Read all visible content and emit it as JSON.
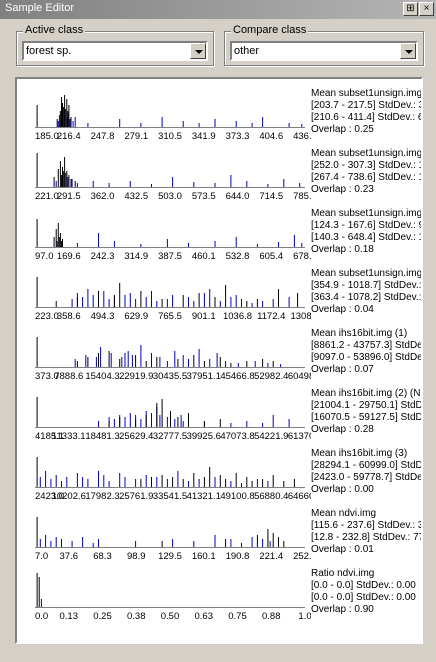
{
  "window": {
    "title": "Sample Editor",
    "pin_glyph": "⊞",
    "close_glyph": "×"
  },
  "active_class": {
    "label": "Active class",
    "value": "forest sp."
  },
  "compare_class": {
    "label": "Compare class",
    "value": "other"
  },
  "colors": {
    "active": "#000000",
    "compare": "#0000c0"
  },
  "rows": [
    {
      "ticks": [
        "185.0",
        "216.4",
        "247.8",
        "279.1",
        "310.5",
        "341.9",
        "373.3",
        "404.6",
        "436.0"
      ],
      "info": [
        "Mean subset1unsign.img",
        "[203.7 - 217.5] StdDev.: 3",
        "[210.6 - 411.4] StdDev.: 6",
        "Overlap : 0.25"
      ],
      "active_bins": [
        [
          2,
          22
        ],
        [
          21,
          8
        ],
        [
          24,
          16
        ],
        [
          25,
          30
        ],
        [
          26,
          24
        ],
        [
          27,
          20
        ],
        [
          28,
          32
        ],
        [
          29,
          18
        ],
        [
          30,
          28
        ],
        [
          31,
          14
        ],
        [
          32,
          22
        ],
        [
          34,
          10
        ]
      ],
      "compare_bins": [
        [
          22,
          6
        ],
        [
          23,
          12
        ],
        [
          26,
          14
        ],
        [
          28,
          18
        ],
        [
          30,
          10
        ],
        [
          31,
          16
        ],
        [
          33,
          8
        ],
        [
          36,
          6
        ],
        [
          38,
          10
        ],
        [
          50,
          4
        ],
        [
          80,
          8
        ],
        [
          100,
          4
        ],
        [
          120,
          10
        ],
        [
          140,
          6
        ],
        [
          155,
          4
        ],
        [
          170,
          8
        ],
        [
          190,
          6
        ],
        [
          205,
          4
        ],
        [
          215,
          10
        ],
        [
          240,
          4
        ],
        [
          252,
          3
        ]
      ]
    },
    {
      "ticks": [
        "221.0",
        "291.5",
        "362.0",
        "432.5",
        "503.0",
        "573.5",
        "644.0",
        "714.5",
        "785.0"
      ],
      "info": [
        "Mean subset1unsign.img",
        "[252.0 - 307.3] StdDev.: 1",
        "[267.4 - 738.6] StdDev.: 1",
        "Overlap : 0.23"
      ],
      "active_bins": [
        [
          2,
          34
        ],
        [
          18,
          10
        ],
        [
          22,
          18
        ],
        [
          24,
          26
        ],
        [
          26,
          20
        ],
        [
          28,
          30
        ],
        [
          30,
          16
        ],
        [
          32,
          12
        ],
        [
          34,
          8
        ],
        [
          38,
          6
        ]
      ],
      "compare_bins": [
        [
          20,
          6
        ],
        [
          25,
          12
        ],
        [
          27,
          16
        ],
        [
          29,
          14
        ],
        [
          31,
          10
        ],
        [
          35,
          8
        ],
        [
          40,
          4
        ],
        [
          55,
          6
        ],
        [
          70,
          4
        ],
        [
          90,
          6
        ],
        [
          110,
          3
        ],
        [
          130,
          10
        ],
        [
          150,
          5
        ],
        [
          170,
          4
        ],
        [
          185,
          12
        ],
        [
          200,
          6
        ],
        [
          220,
          3
        ],
        [
          235,
          8
        ],
        [
          250,
          4
        ]
      ]
    },
    {
      "ticks": [
        "97.0",
        "169.6",
        "242.3",
        "314.9",
        "387.5",
        "460.1",
        "532.8",
        "605.4",
        "678.0"
      ],
      "info": [
        "Mean subset1unsign.img",
        "[124.3 - 167.6] StdDev.: 9",
        "[140.3 - 648.4] StdDev.: 1",
        "Overlap : 0.18"
      ],
      "active_bins": [
        [
          2,
          28
        ],
        [
          18,
          10
        ],
        [
          20,
          18
        ],
        [
          22,
          24
        ],
        [
          24,
          14
        ],
        [
          26,
          8
        ]
      ],
      "compare_bins": [
        [
          21,
          6
        ],
        [
          23,
          10
        ],
        [
          25,
          6
        ],
        [
          40,
          4
        ],
        [
          60,
          14
        ],
        [
          75,
          6
        ],
        [
          100,
          3
        ],
        [
          125,
          8
        ],
        [
          145,
          4
        ],
        [
          170,
          6
        ],
        [
          190,
          10
        ],
        [
          210,
          3
        ],
        [
          230,
          5
        ],
        [
          245,
          12
        ],
        [
          252,
          4
        ]
      ]
    },
    {
      "ticks": [
        "223.0",
        "358.6",
        "494.3",
        "629.9",
        "765.5",
        "901.1",
        "1036.8",
        "1172.4",
        "1308.0"
      ],
      "info": [
        "Mean subset1unsign.img",
        "[354.9 - 1018.7] StdDev.:",
        "[363.4 - 1078.2] StdDev.:",
        "Overlap : 0.04"
      ],
      "active_bins": [
        [
          2,
          30
        ],
        [
          20,
          6
        ],
        [
          40,
          10
        ],
        [
          60,
          16
        ],
        [
          75,
          12
        ],
        [
          80,
          24
        ],
        [
          100,
          16
        ],
        [
          120,
          8
        ],
        [
          140,
          12
        ],
        [
          155,
          14
        ],
        [
          170,
          10
        ],
        [
          180,
          22
        ],
        [
          200,
          6
        ],
        [
          210,
          8
        ],
        [
          230,
          18
        ],
        [
          248,
          14
        ]
      ],
      "compare_bins": [
        [
          35,
          8
        ],
        [
          40,
          14
        ],
        [
          45,
          10
        ],
        [
          50,
          18
        ],
        [
          55,
          12
        ],
        [
          60,
          10
        ],
        [
          65,
          16
        ],
        [
          70,
          8
        ],
        [
          75,
          10
        ],
        [
          85,
          12
        ],
        [
          90,
          14
        ],
        [
          95,
          8
        ],
        [
          105,
          10
        ],
        [
          110,
          16
        ],
        [
          115,
          6
        ],
        [
          125,
          8
        ],
        [
          130,
          12
        ],
        [
          145,
          10
        ],
        [
          150,
          6
        ],
        [
          160,
          14
        ],
        [
          165,
          18
        ],
        [
          175,
          6
        ],
        [
          185,
          10
        ],
        [
          190,
          12
        ],
        [
          195,
          8
        ],
        [
          205,
          4
        ],
        [
          215,
          6
        ],
        [
          225,
          8
        ],
        [
          240,
          10
        ]
      ]
    },
    {
      "ticks": [
        "373.0",
        "7888.6",
        "15404.3",
        "22919.9",
        "30435.5",
        "37951.1",
        "45466.8",
        "52982.4",
        "60498.0"
      ],
      "info": [
        "Mean ihs16bit.img (1)",
        "[8861.2 - 43757.3] StdDev",
        "[9097.0 - 53896.0] StdDev",
        "Overlap : 0.07"
      ],
      "active_bins": [
        [
          2,
          30
        ],
        [
          40,
          6
        ],
        [
          50,
          10
        ],
        [
          60,
          14
        ],
        [
          70,
          16
        ],
        [
          80,
          8
        ],
        [
          95,
          12
        ],
        [
          105,
          6
        ],
        [
          115,
          10
        ],
        [
          135,
          8
        ],
        [
          150,
          12
        ],
        [
          160,
          6
        ],
        [
          175,
          10
        ],
        [
          185,
          4
        ],
        [
          200,
          6
        ],
        [
          215,
          8
        ],
        [
          225,
          6
        ]
      ],
      "compare_bins": [
        [
          38,
          8
        ],
        [
          48,
          12
        ],
        [
          58,
          10
        ],
        [
          62,
          20
        ],
        [
          72,
          14
        ],
        [
          82,
          10
        ],
        [
          85,
          14
        ],
        [
          88,
          16
        ],
        [
          92,
          12
        ],
        [
          100,
          22
        ],
        [
          110,
          14
        ],
        [
          118,
          10
        ],
        [
          125,
          6
        ],
        [
          132,
          16
        ],
        [
          140,
          12
        ],
        [
          145,
          8
        ],
        [
          155,
          18
        ],
        [
          165,
          8
        ],
        [
          172,
          14
        ],
        [
          180,
          6
        ],
        [
          192,
          4
        ],
        [
          208,
          6
        ],
        [
          220,
          4
        ],
        [
          232,
          3
        ]
      ]
    },
    {
      "ticks": [
        "4185.1",
        "11333.1",
        "18481.3",
        "25629.4",
        "32777.5",
        "39925.6",
        "47073.8",
        "54221.9",
        "61370.0"
      ],
      "info": [
        "Mean ihs16bit.img (2) (NI",
        "[21004.1 - 29750.1] StdDe",
        "[16070.5 - 59127.5] StdDe",
        "Overlap : 0.28"
      ],
      "active_bins": [
        [
          2,
          30
        ],
        [
          70,
          6
        ],
        [
          80,
          10
        ],
        [
          95,
          8
        ],
        [
          105,
          12
        ],
        [
          115,
          24
        ],
        [
          120,
          28
        ],
        [
          128,
          16
        ],
        [
          135,
          10
        ],
        [
          145,
          14
        ],
        [
          160,
          6
        ],
        [
          175,
          8
        ]
      ],
      "compare_bins": [
        [
          60,
          6
        ],
        [
          70,
          10
        ],
        [
          75,
          8
        ],
        [
          80,
          12
        ],
        [
          85,
          10
        ],
        [
          90,
          14
        ],
        [
          95,
          12
        ],
        [
          100,
          8
        ],
        [
          105,
          16
        ],
        [
          110,
          14
        ],
        [
          115,
          20
        ],
        [
          118,
          12
        ],
        [
          125,
          10
        ],
        [
          132,
          8
        ],
        [
          138,
          12
        ],
        [
          140,
          6
        ],
        [
          160,
          6
        ],
        [
          185,
          4
        ],
        [
          200,
          6
        ],
        [
          215,
          4
        ],
        [
          225,
          12
        ],
        [
          240,
          8
        ]
      ]
    },
    {
      "ticks": [
        "2423.0",
        "10202.6",
        "17982.3",
        "25761.9",
        "33541.5",
        "41321.1",
        "49100.8",
        "56880.4",
        "64660.0"
      ],
      "info": [
        "Mean ihs16bit.img (3)",
        "[28294.1 - 60999.0] StdDe",
        "[2423.0 - 59778.7] StdDev",
        "Overlap : 0.00"
      ],
      "active_bins": [
        [
          2,
          30
        ],
        [
          100,
          8
        ],
        [
          110,
          10
        ],
        [
          120,
          12
        ],
        [
          130,
          10
        ],
        [
          140,
          8
        ],
        [
          150,
          14
        ],
        [
          160,
          10
        ],
        [
          165,
          20
        ],
        [
          175,
          12
        ],
        [
          180,
          8
        ],
        [
          190,
          14
        ],
        [
          200,
          10
        ],
        [
          205,
          6
        ],
        [
          215,
          8
        ],
        [
          225,
          12
        ],
        [
          235,
          6
        ],
        [
          245,
          8
        ]
      ],
      "compare_bins": [
        [
          5,
          10
        ],
        [
          10,
          16
        ],
        [
          15,
          8
        ],
        [
          20,
          12
        ],
        [
          25,
          6
        ],
        [
          30,
          10
        ],
        [
          40,
          14
        ],
        [
          45,
          10
        ],
        [
          50,
          8
        ],
        [
          60,
          16
        ],
        [
          65,
          12
        ],
        [
          70,
          6
        ],
        [
          80,
          14
        ],
        [
          85,
          10
        ],
        [
          95,
          8
        ],
        [
          105,
          12
        ],
        [
          115,
          10
        ],
        [
          125,
          8
        ],
        [
          135,
          16
        ],
        [
          145,
          6
        ],
        [
          155,
          8
        ],
        [
          170,
          10
        ],
        [
          185,
          6
        ],
        [
          195,
          4
        ],
        [
          210,
          8
        ],
        [
          220,
          6
        ]
      ]
    },
    {
      "ticks": [
        "7.0",
        "37.6",
        "68.3",
        "98.9",
        "129.5",
        "160.1",
        "190.8",
        "221.4",
        "252.0"
      ],
      "info": [
        "Mean ndvi.img",
        "[115.6 - 237.6] StdDev.: 3",
        "[12.8 - 232.8] StdDev.: 77",
        "Overlap : 0.01"
      ],
      "active_bins": [
        [
          2,
          30
        ],
        [
          120,
          6
        ],
        [
          180,
          8
        ],
        [
          210,
          12
        ],
        [
          220,
          18
        ],
        [
          225,
          14
        ],
        [
          230,
          10
        ],
        [
          235,
          6
        ]
      ],
      "compare_bins": [
        [
          5,
          8
        ],
        [
          10,
          12
        ],
        [
          15,
          6
        ],
        [
          20,
          10
        ],
        [
          25,
          8
        ],
        [
          35,
          6
        ],
        [
          45,
          10
        ],
        [
          55,
          4
        ],
        [
          60,
          8
        ],
        [
          95,
          6
        ],
        [
          130,
          8
        ],
        [
          150,
          6
        ],
        [
          170,
          12
        ],
        [
          185,
          8
        ],
        [
          195,
          4
        ],
        [
          205,
          10
        ],
        [
          215,
          8
        ],
        [
          222,
          6
        ]
      ]
    },
    {
      "ticks": [
        "0.0",
        "0.13",
        "0.25",
        "0.38",
        "0.50",
        "0.63",
        "0.75",
        "0.88",
        "1.0"
      ],
      "info": [
        "Ratio ndvi.img",
        "[0.0 - 0.0] StdDev.: 0.00",
        "[0.0 - 0.0] StdDev.: 0.00",
        "Overlap : 0.90"
      ],
      "active_bins": [
        [
          2,
          34
        ],
        [
          4,
          30
        ]
      ],
      "compare_bins": [
        [
          6,
          8
        ]
      ]
    }
  ]
}
